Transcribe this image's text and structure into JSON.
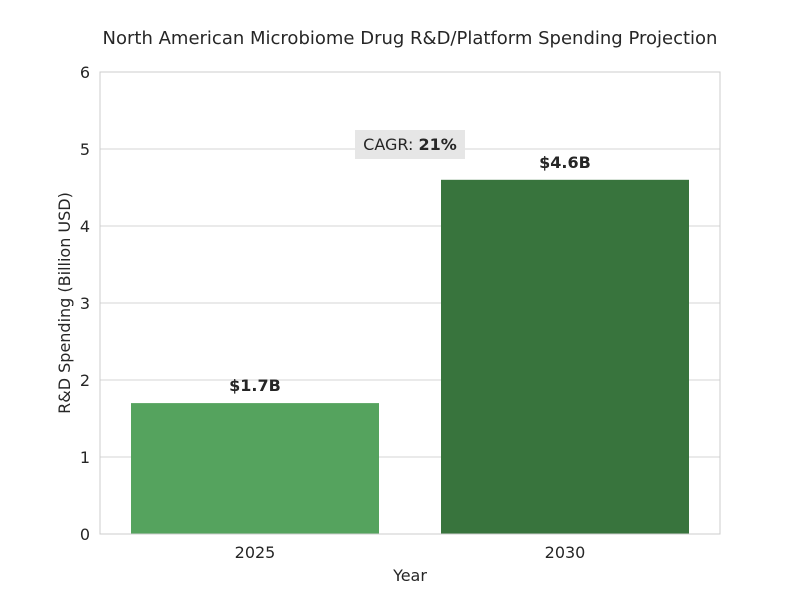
{
  "chart_data": {
    "type": "bar",
    "title": "North American Microbiome Drug R&D/Platform Spending Projection",
    "xlabel": "Year",
    "ylabel": "R&D Spending (Billion USD)",
    "categories": [
      "2025",
      "2030"
    ],
    "values": [
      1.7,
      4.6
    ],
    "data_labels": [
      "$1.7B",
      "$4.6B"
    ],
    "ylim": [
      0,
      6
    ],
    "yticks": [
      0,
      1,
      2,
      3,
      4,
      5,
      6
    ],
    "ytick_labels": [
      "0",
      "1",
      "2",
      "3",
      "4",
      "5",
      "6"
    ],
    "grid": true,
    "annotation": {
      "prefix": "CAGR: ",
      "value": "21%"
    },
    "bar_colors": [
      "#55a35e",
      "#38743d"
    ],
    "annotation_bg": "#e6e6e6",
    "grid_color": "#d4d4d4"
  }
}
